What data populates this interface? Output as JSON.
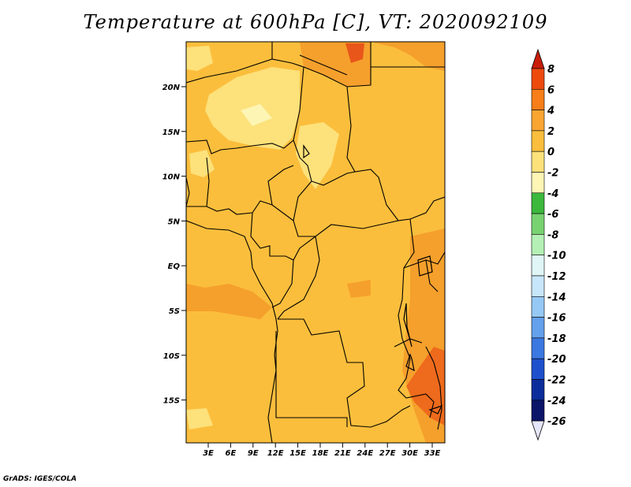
{
  "title": "Temperature at 600hPa [C], VT: 2020092109",
  "footer": "GrADS: IGES/COLA",
  "map": {
    "lat_labels": [
      "20N",
      "15N",
      "10N",
      "5N",
      "EQ",
      "5S",
      "10S",
      "15S"
    ],
    "lon_labels": [
      "3E",
      "6E",
      "9E",
      "12E",
      "15E",
      "18E",
      "21E",
      "24E",
      "27E",
      "30E",
      "33E"
    ],
    "region": "Central Africa"
  },
  "colorbar": {
    "labels": [
      "8",
      "6",
      "4",
      "2",
      "0",
      "-2",
      "-4",
      "-6",
      "-8",
      "-10",
      "-12",
      "-14",
      "-16",
      "-18",
      "-20",
      "-22",
      "-24",
      "-26"
    ],
    "colors": [
      "#c81e0a",
      "#ee4a0e",
      "#f77e18",
      "#faa532",
      "#fbbe3c",
      "#fde17a",
      "#fcf5b4",
      "#3cb83c",
      "#78d270",
      "#b4f0b4",
      "#e0f5f5",
      "#c8e6fa",
      "#96c8f5",
      "#64a0eb",
      "#3c78e1",
      "#1e50cd",
      "#0a2d9b",
      "#0a1469",
      "#e6e6fa"
    ]
  }
}
